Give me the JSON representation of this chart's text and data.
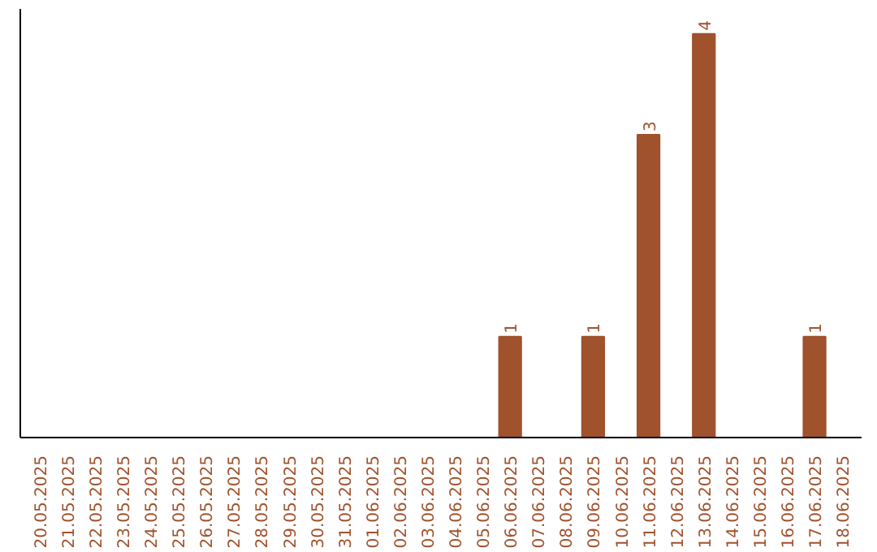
{
  "chart_data": {
    "type": "bar",
    "categories": [
      "20.05.2025",
      "21.05.2025",
      "22.05.2025",
      "23.05.2025",
      "24.05.2025",
      "25.05.2025",
      "26.05.2025",
      "27.05.2025",
      "28.05.2025",
      "29.05.2025",
      "30.05.2025",
      "31.05.2025",
      "01.06.2025",
      "02.06.2025",
      "03.06.2025",
      "04.06.2025",
      "05.06.2025",
      "06.06.2025",
      "07.06.2025",
      "08.06.2025",
      "09.06.2025",
      "10.06.2025",
      "11.06.2025",
      "12.06.2025",
      "13.06.2025",
      "14.06.2025",
      "15.06.2025",
      "16.06.2025",
      "17.06.2025",
      "18.06.2025"
    ],
    "values": [
      null,
      null,
      null,
      null,
      null,
      null,
      null,
      null,
      null,
      null,
      null,
      null,
      null,
      null,
      null,
      null,
      null,
      1,
      null,
      null,
      1,
      null,
      3,
      null,
      4,
      null,
      null,
      null,
      1,
      null
    ],
    "value_labels": [
      null,
      null,
      null,
      null,
      null,
      null,
      null,
      null,
      null,
      null,
      null,
      null,
      null,
      null,
      null,
      null,
      null,
      "1",
      null,
      null,
      "1",
      null,
      "3",
      null,
      "4",
      null,
      null,
      null,
      "1",
      null
    ],
    "color": "#a0522d",
    "grid": false,
    "tick_labels": "x"
  }
}
